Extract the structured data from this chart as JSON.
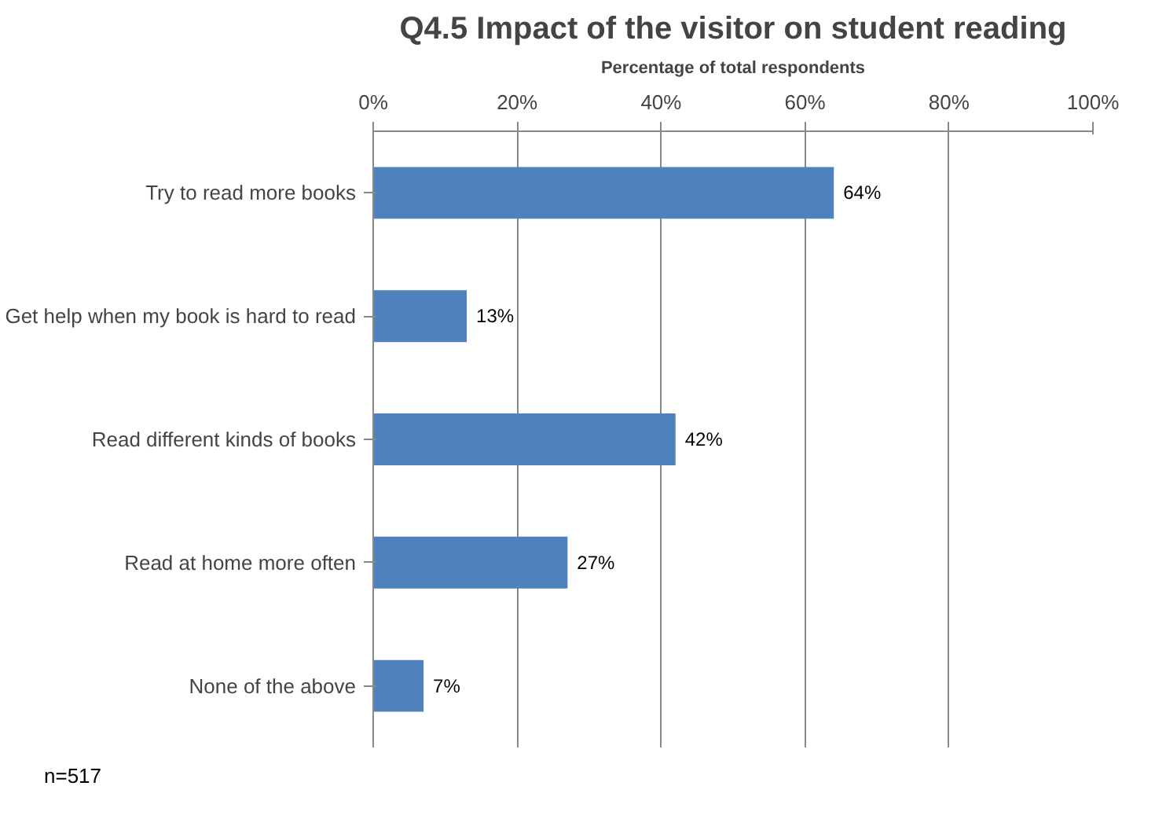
{
  "chart_data": {
    "type": "bar",
    "orientation": "horizontal",
    "title": "Q4.5 Impact of the visitor on student reading",
    "xlabel": "Percentage of total respondents",
    "categories": [
      "Try to read more books",
      "Get help when my book is hard to read",
      "Read different kinds of books",
      "Read at home more often",
      "None of the above"
    ],
    "values": [
      64,
      13,
      42,
      27,
      7
    ],
    "color": "#4f81bd",
    "value_labels": [
      "64%",
      "13%",
      "42%",
      "27%",
      "7%"
    ],
    "xlim": [
      0,
      100
    ],
    "xticks": [
      {
        "value": 0,
        "label": "0%"
      },
      {
        "value": 20,
        "label": "20%"
      },
      {
        "value": 40,
        "label": "40%"
      },
      {
        "value": 60,
        "label": "60%"
      },
      {
        "value": 80,
        "label": "80%"
      },
      {
        "value": 100,
        "label": "100%"
      }
    ],
    "grid": "x",
    "annotations": [
      "n=517"
    ]
  }
}
